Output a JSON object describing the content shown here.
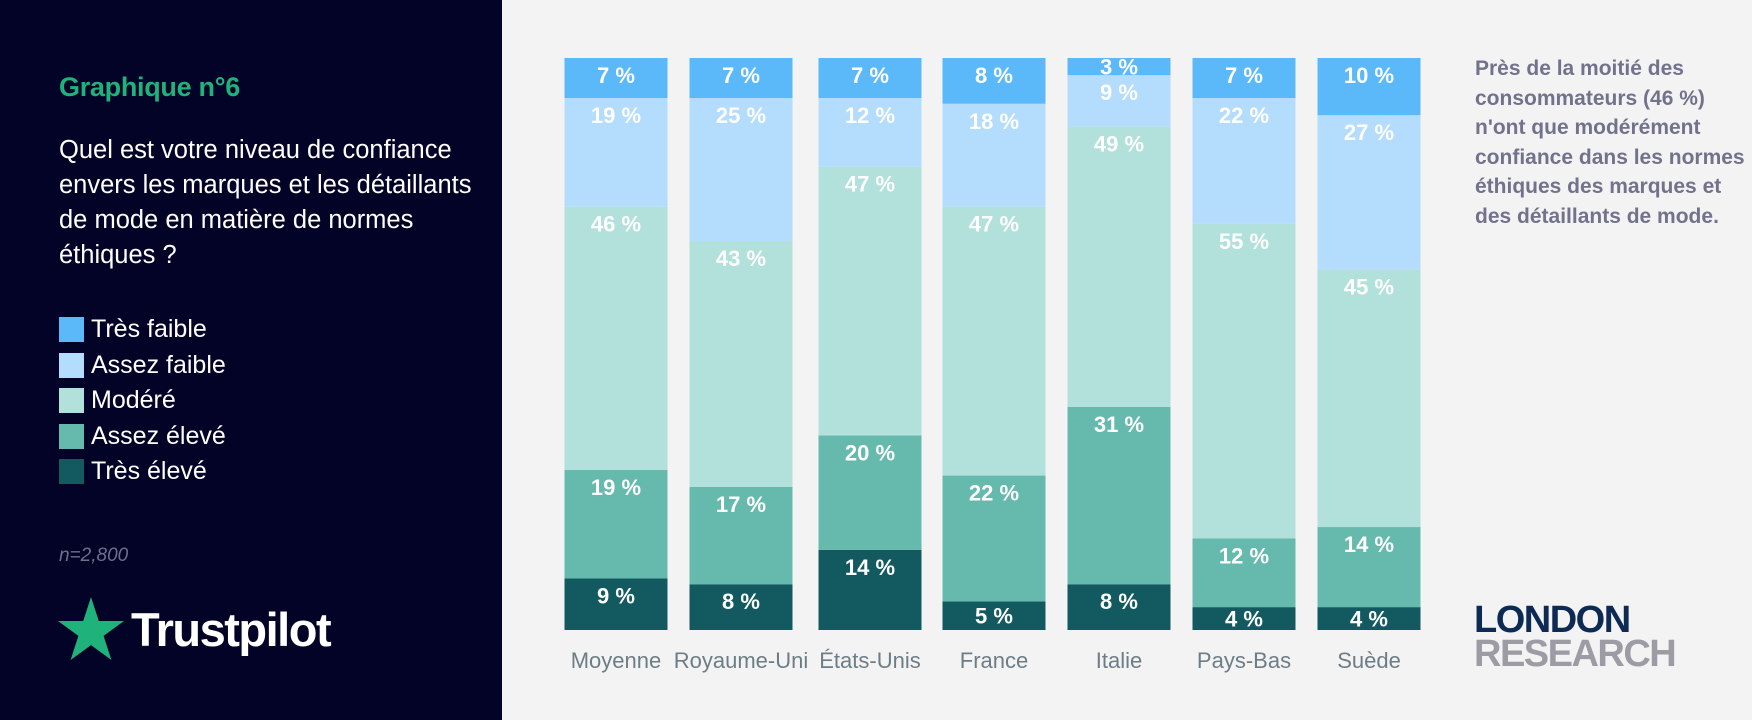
{
  "panel": {
    "chart_label": "Graphique n°6",
    "question": "Quel est votre niveau de confiance envers les marques et les détaillants de mode en matière de normes éthiques ?",
    "legend": [
      {
        "label": "Très faible",
        "color": "#5cb9f9"
      },
      {
        "label": "Assez faible",
        "color": "#b4dcfc"
      },
      {
        "label": "Modéré",
        "color": "#b2e0da"
      },
      {
        "label": "Assez élevé",
        "color": "#66b9ad"
      },
      {
        "label": "Très élevé",
        "color": "#125a5f"
      }
    ],
    "sample_size": "n=2,800",
    "brand": "Trustpilot",
    "brand_color": "#1fb27a"
  },
  "note": "Près de la moitié des consommateurs (46 %) n'ont que modérément confiance dans les normes éthiques des marques et des détaillants de mode.",
  "logo": {
    "line1": "LONDON",
    "line2": "RESEARCH"
  },
  "chart_data": {
    "type": "bar",
    "stacked": true,
    "normalized_percent": true,
    "categories": [
      "Moyenne",
      "Royaume-Uni",
      "États-Unis",
      "France",
      "Italie",
      "Pays-Bas",
      "Suède"
    ],
    "series": [
      {
        "name": "Très élevé",
        "color": "#125a5f",
        "values": [
          9,
          8,
          14,
          5,
          8,
          4,
          4
        ]
      },
      {
        "name": "Assez élevé",
        "color": "#66b9ad",
        "values": [
          19,
          17,
          20,
          22,
          31,
          12,
          14
        ]
      },
      {
        "name": "Modéré",
        "color": "#b2e0da",
        "values": [
          46,
          43,
          47,
          47,
          49,
          55,
          45
        ]
      },
      {
        "name": "Assez faible",
        "color": "#b4dcfc",
        "values": [
          19,
          25,
          12,
          18,
          9,
          22,
          27
        ]
      },
      {
        "name": "Très faible",
        "color": "#5cb9f9",
        "values": [
          7,
          7,
          7,
          8,
          3,
          7,
          10
        ]
      }
    ],
    "value_suffix": " %",
    "ylim": [
      0,
      100
    ]
  }
}
